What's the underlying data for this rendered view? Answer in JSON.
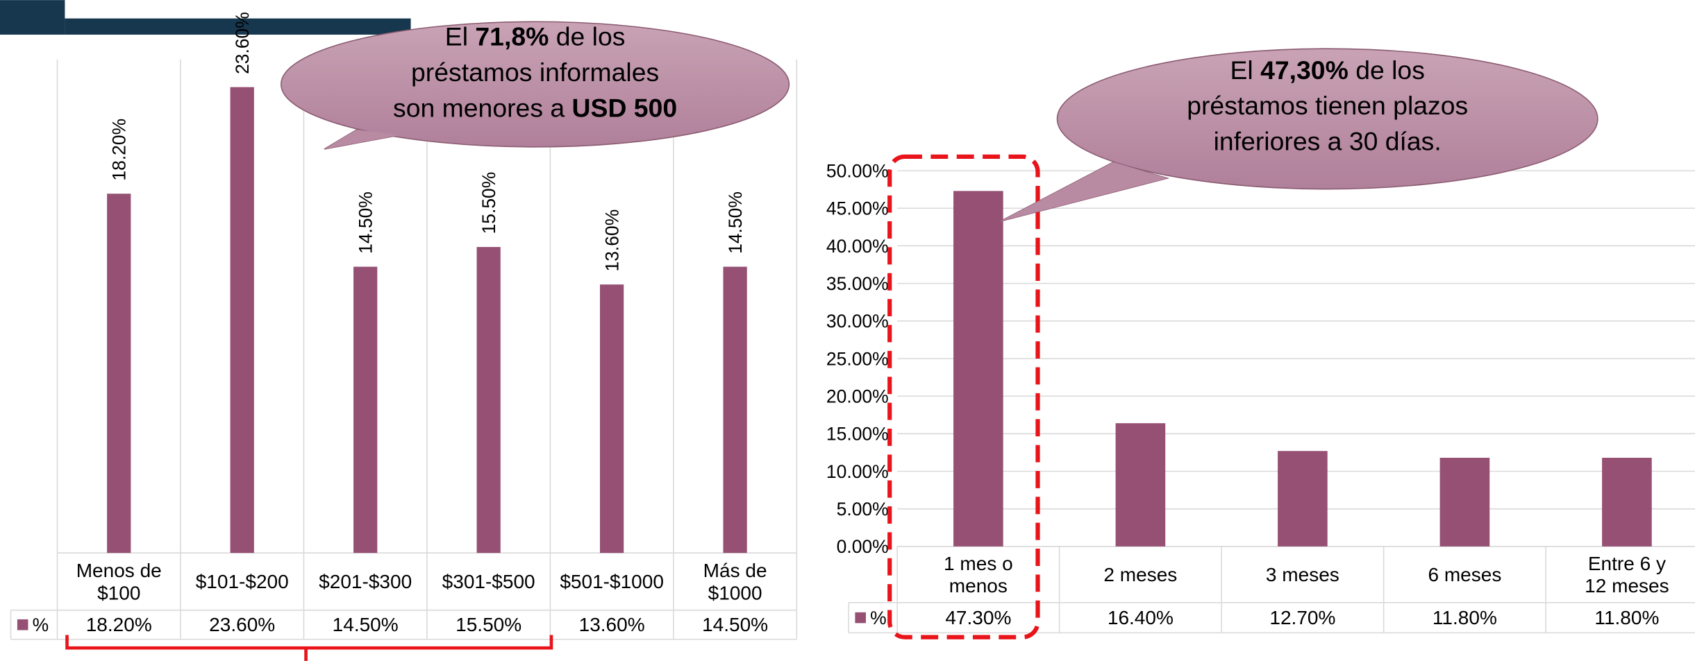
{
  "chart_data": [
    {
      "type": "bar",
      "categories": [
        "Menos de $100",
        "$101-$200",
        "$201-$300",
        "$301-$500",
        "$501-$1000",
        "Más de $1000"
      ],
      "series": [
        {
          "name": "%",
          "color": "#955074",
          "values": [
            18.2,
            23.6,
            14.5,
            15.5,
            13.6,
            14.5
          ],
          "value_labels": [
            "18.20%",
            "23.60%",
            "14.50%",
            "15.50%",
            "13.60%",
            "14.50%"
          ]
        }
      ],
      "ylim": [
        0,
        25
      ],
      "annotation": [
        "El ",
        "71,8%",
        " de los",
        "préstamos informales",
        "son menores a ",
        "USD 500"
      ]
    },
    {
      "type": "bar",
      "categories": [
        "1 mes o menos",
        "2 meses",
        "3 meses",
        "6 meses",
        "Entre 6 y 12 meses"
      ],
      "series": [
        {
          "name": "%",
          "color": "#955074",
          "values": [
            47.3,
            16.4,
            12.7,
            11.8,
            11.8
          ],
          "value_labels": [
            "47.30%",
            "16.40%",
            "12.70%",
            "11.80%",
            "11.80%"
          ]
        }
      ],
      "ylim": [
        0,
        50
      ],
      "yticks": [
        {
          "value": 0,
          "label": "0.00%"
        },
        {
          "value": 5,
          "label": "5.00%"
        },
        {
          "value": 10,
          "label": "10.00%"
        },
        {
          "value": 15,
          "label": "15.00%"
        },
        {
          "value": 20,
          "label": "20.00%"
        },
        {
          "value": 25,
          "label": "25.00%"
        },
        {
          "value": 30,
          "label": "30.00%"
        },
        {
          "value": 35,
          "label": "35.00%"
        },
        {
          "value": 40,
          "label": "40.00%"
        },
        {
          "value": 45,
          "label": "45.00%"
        },
        {
          "value": 50,
          "label": "50.00%"
        }
      ],
      "grid": true,
      "annotation": [
        "El ",
        "47,30%",
        " de los",
        "préstamos tienen plazos",
        "inferiores a 30 días."
      ]
    }
  ]
}
